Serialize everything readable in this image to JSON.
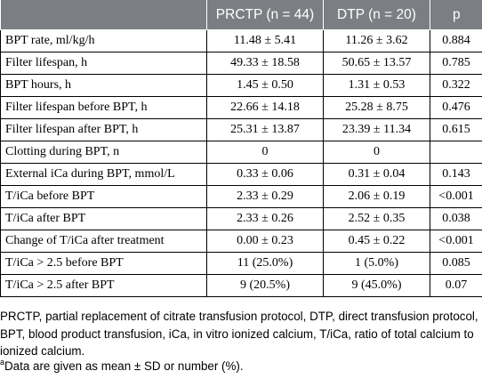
{
  "table": {
    "headers": [
      "",
      "PRCTP (n = 44)",
      "DTP (n = 20)",
      "p"
    ],
    "rows": [
      [
        "BPT rate, ml/kg/h",
        "11.48 ± 5.41",
        "11.26 ± 3.62",
        "0.884"
      ],
      [
        "Filter lifespan, h",
        "49.33 ± 18.58",
        "50.65 ± 13.57",
        "0.785"
      ],
      [
        "BPT hours, h",
        "1.45 ± 0.50",
        "1.31 ± 0.53",
        "0.322"
      ],
      [
        "Filter lifespan before BPT, h",
        "22.66 ± 14.18",
        "25.28 ± 8.75",
        "0.476"
      ],
      [
        "Filter lifespan after BPT, h",
        "25.31 ± 13.87",
        "23.39 ± 11.34",
        "0.615"
      ],
      [
        "Clotting during BPT, n",
        "0",
        "0",
        ""
      ],
      [
        "External iCa during BPT, mmol/L",
        "0.33 ± 0.06",
        "0.31 ± 0.04",
        "0.143"
      ],
      [
        "T/iCa before BPT",
        "2.33 ± 0.29",
        "2.06 ± 0.19",
        "<0.001"
      ],
      [
        "T/iCa after BPT",
        "2.33 ± 0.26",
        "2.52 ± 0.35",
        "0.038"
      ],
      [
        "Change of T/iCa after treatment",
        "0.00 ± 0.23",
        "0.45 ± 0.22",
        "<0.001"
      ],
      [
        "T/iCa > 2.5 before BPT",
        "11 (25.0%)",
        "1 (5.0%)",
        "0.085"
      ],
      [
        "T/iCa > 2.5 after BPT",
        "9 (20.5%)",
        "9 (45.0%)",
        "0.07"
      ]
    ]
  },
  "caption": "PRCTP, partial replacement of citrate transfusion protocol, DTP, direct transfusion protocol, BPT, blood product transfusion, iCa, in vitro ionized calcium, T/iCa, ratio of total calcium to ionized calcium.",
  "footnote": {
    "marker": "a",
    "text": "Data are given as mean ± SD or number (%)."
  }
}
